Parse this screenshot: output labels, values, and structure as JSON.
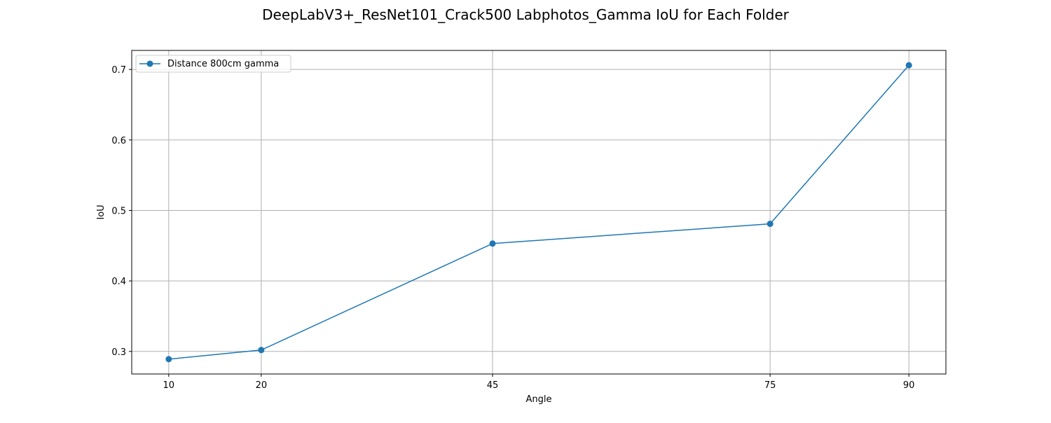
{
  "chart_data": {
    "type": "line",
    "title": "DeepLabV3+_ResNet101_Crack500 Labphotos_Gamma IoU for Each Folder",
    "xlabel": "Angle",
    "ylabel": "IoU",
    "x": [
      10,
      20,
      45,
      75,
      90
    ],
    "x_tick_labels": [
      "10",
      "20",
      "45",
      "75",
      "90"
    ],
    "y_ticks": [
      0.3,
      0.4,
      0.5,
      0.6,
      0.7
    ],
    "y_tick_labels": [
      "0.3",
      "0.4",
      "0.5",
      "0.6",
      "0.7"
    ],
    "xlim": [
      6.0,
      94.0
    ],
    "ylim": [
      0.268,
      0.727
    ],
    "grid": true,
    "legend_position": "upper-left",
    "series": [
      {
        "name": "Distance 800cm gamma",
        "color": "#1f77b4",
        "marker": "circle",
        "values": [
          0.289,
          0.302,
          0.453,
          0.481,
          0.706
        ]
      }
    ]
  }
}
